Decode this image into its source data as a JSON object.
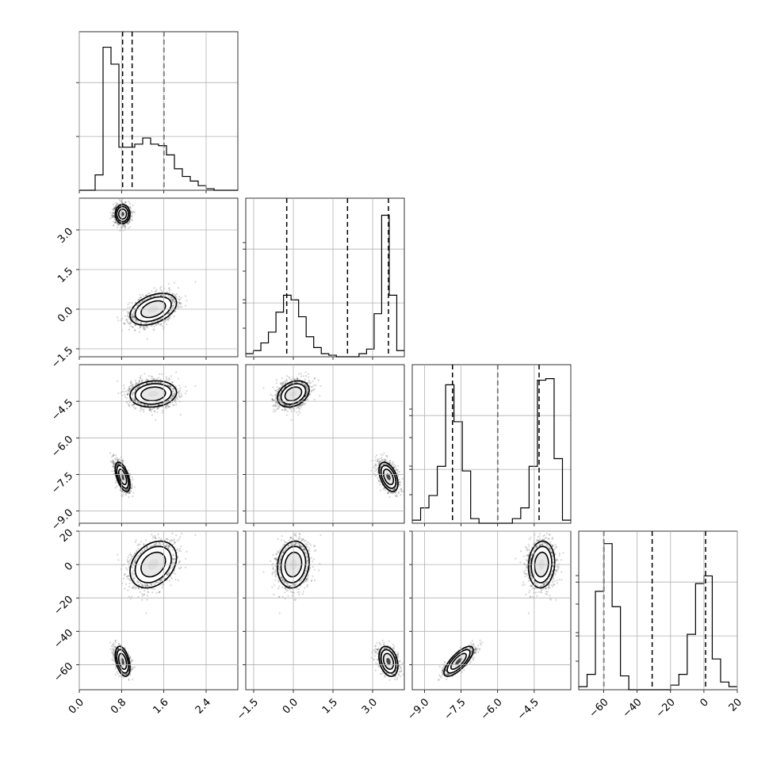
{
  "chart_data": {
    "type": "corner",
    "grid": true,
    "parameters": [
      {
        "range": [
          0.0,
          3.0
        ],
        "ticks": [
          0.0,
          0.8,
          1.6,
          2.4
        ],
        "tick_labels": [
          "0.0",
          "0.8",
          "1.6",
          "2.4"
        ],
        "quantiles": [
          0.82,
          1.0,
          1.6
        ],
        "hist_edges": [
          0.3,
          0.6,
          0.75
        ],
        "hist_bins": [
          0,
          0,
          0.1,
          0.93,
          0.82,
          0.28,
          0.28,
          0.3,
          0.34,
          0.3,
          0.29,
          0.23,
          0.14,
          0.09,
          0.06,
          0.03,
          0.01,
          0,
          0,
          0
        ],
        "hist_range": [
          0.0,
          3.0
        ]
      },
      {
        "range": [
          -1.8,
          4.2
        ],
        "ticks": [
          -1.5,
          0.0,
          1.5,
          3.0
        ],
        "tick_labels": [
          "−1.5",
          "0.0",
          "1.5",
          "3.0"
        ],
        "quantiles": [
          -0.25,
          2.05,
          3.6
        ],
        "hist_bins": [
          0.02,
          0.04,
          0.09,
          0.16,
          0.29,
          0.4,
          0.37,
          0.26,
          0.13,
          0.06,
          0.02,
          0.01,
          0,
          0,
          0,
          0.02,
          0.05,
          0.28,
          0.92,
          0.4,
          0.04
        ],
        "hist_range": [
          -1.8,
          4.2
        ]
      },
      {
        "range": [
          -9.5,
          -3.0
        ],
        "ticks": [
          -9.0,
          -7.5,
          -6.0,
          -4.5
        ],
        "tick_labels": [
          "−9.0",
          "−7.5",
          "−6.0",
          "−4.5"
        ],
        "quantiles": [
          -7.85,
          -6.0,
          -4.3
        ],
        "hist_bins": [
          0.02,
          0.1,
          0.18,
          0.37,
          0.9,
          0.66,
          0.34,
          0.03,
          0,
          0,
          0,
          0,
          0.03,
          0.1,
          0.37,
          0.93,
          0.94,
          0.42,
          0.02
        ],
        "hist_range": [
          -9.5,
          -3.0
        ]
      },
      {
        "range": [
          -75,
          20
        ],
        "ticks": [
          -60,
          -40,
          -20,
          0,
          20
        ],
        "tick_labels": [
          "−60",
          "−40",
          "−20",
          "0",
          "20"
        ],
        "quantiles": [
          -60,
          -31,
          1
        ],
        "hist_bins": [
          0.02,
          0.1,
          0.64,
          0.95,
          0.54,
          0.09,
          0,
          0,
          0,
          0,
          0,
          0.03,
          0.1,
          0.36,
          0.69,
          0.74,
          0.2,
          0.05,
          0.02
        ],
        "hist_range": [
          -75,
          20
        ]
      }
    ],
    "modes": [
      {
        "center": [
          1.4,
          0.0,
          -4.2,
          0.0
        ],
        "sigma": [
          0.22,
          0.3,
          0.27,
          7.0
        ],
        "weight": 0.55
      },
      {
        "center": [
          0.82,
          3.6,
          -7.6,
          -58.0
        ],
        "sigma": [
          0.07,
          0.18,
          0.3,
          4.5
        ],
        "weight": 0.45
      }
    ]
  }
}
